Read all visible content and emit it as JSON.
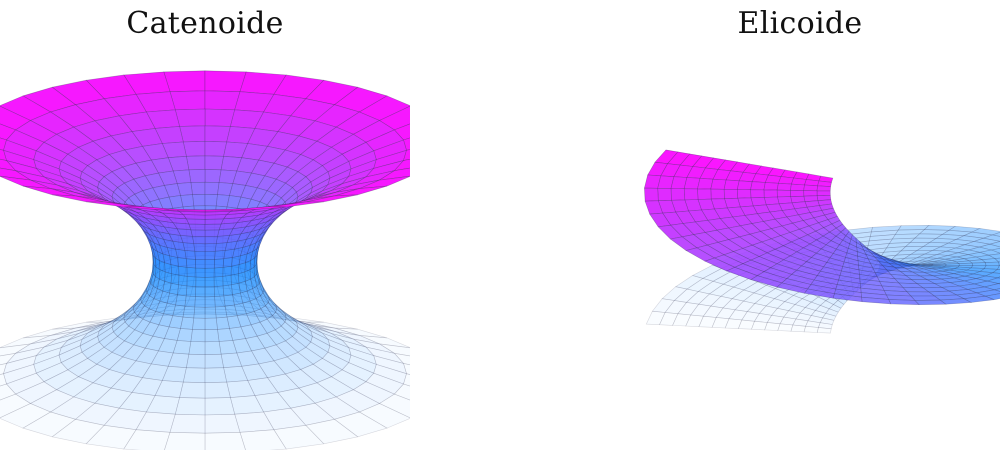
{
  "figure": {
    "panels": [
      {
        "title": "Catenoide",
        "surface": "catenoid",
        "colors": {
          "top": "#ff10ff",
          "mid": "#1a8cff",
          "bottom": "#f6faff",
          "mesh": "#2a2a4a"
        }
      },
      {
        "title": "Elicoide",
        "surface": "helicoid",
        "colors": {
          "top": "#ff10ff",
          "mid": "#1a8cff",
          "bottom": "#f6faff",
          "mesh": "#2a2a4a"
        }
      }
    ]
  }
}
